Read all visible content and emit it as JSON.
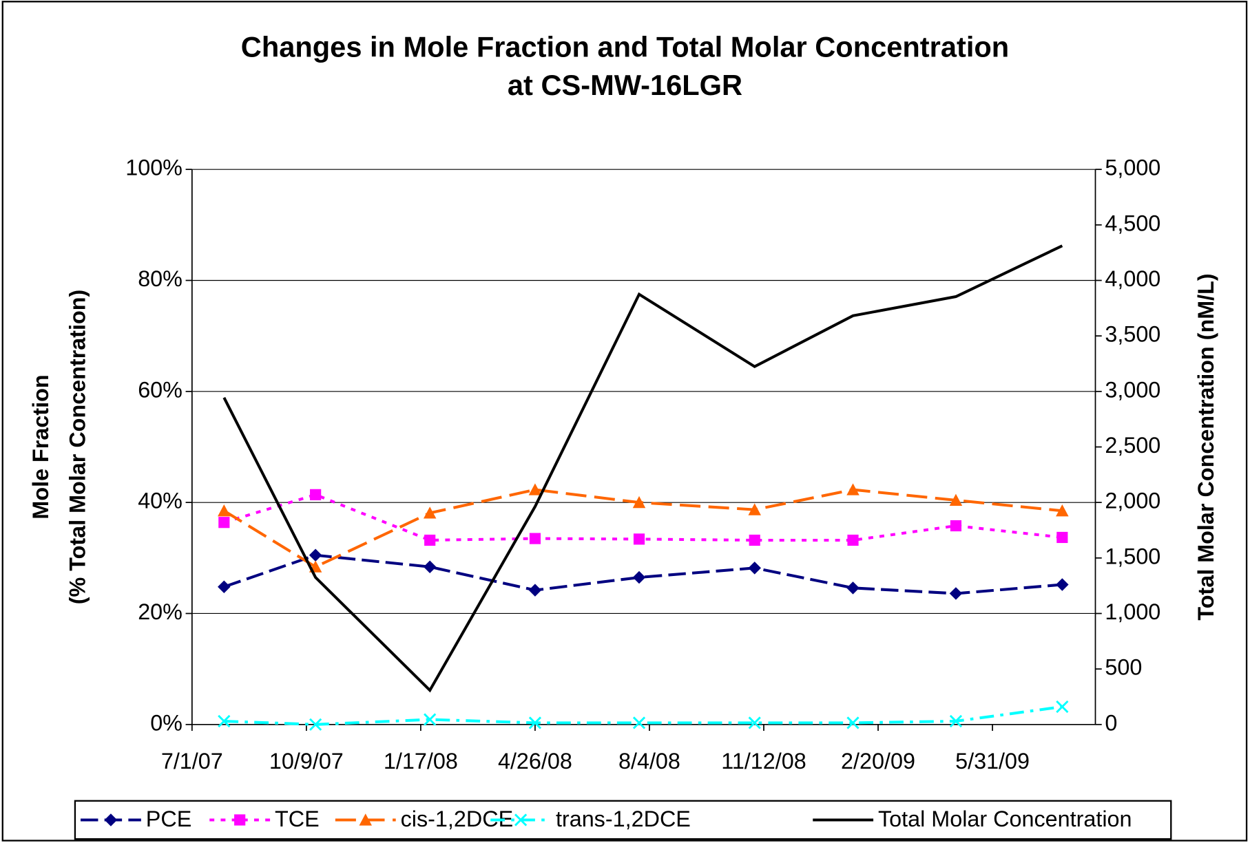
{
  "chart_data": {
    "type": "line",
    "title": [
      "Changes in Mole Fraction and Total Molar Concentration",
      "at CS-MW-16LGR"
    ],
    "ylabel": [
      "Mole Fraction",
      "(% Total Molar Concentration)"
    ],
    "y2label": "Total Molar Concentration (nM/L)",
    "x": [
      39292,
      39372,
      39472,
      39564,
      39655,
      39756,
      39842,
      39932,
      40025
    ],
    "xlim": [
      39264,
      40054
    ],
    "xticks": [
      {
        "value": 39264,
        "label": "7/1/07"
      },
      {
        "value": 39364,
        "label": "10/9/07"
      },
      {
        "value": 39464,
        "label": "1/17/08"
      },
      {
        "value": 39564,
        "label": "4/26/08"
      },
      {
        "value": 39664,
        "label": "8/4/08"
      },
      {
        "value": 39764,
        "label": "11/12/08"
      },
      {
        "value": 39864,
        "label": "2/20/09"
      },
      {
        "value": 39964,
        "label": "5/31/09"
      }
    ],
    "ylim": [
      0,
      100
    ],
    "yticks": [
      {
        "value": 0,
        "label": "0%"
      },
      {
        "value": 20,
        "label": "20%"
      },
      {
        "value": 40,
        "label": "40%"
      },
      {
        "value": 60,
        "label": "60%"
      },
      {
        "value": 80,
        "label": "80%"
      },
      {
        "value": 100,
        "label": "100%"
      }
    ],
    "y2lim": [
      0,
      5000
    ],
    "y2ticks": [
      0,
      500,
      {
        "value": 1000,
        "label": "1,000"
      },
      {
        "value": 1500,
        "label": "1,500"
      },
      {
        "value": 2000,
        "label": "2,000"
      },
      {
        "value": 2500,
        "label": "2,500"
      },
      {
        "value": 3000,
        "label": "3,000"
      },
      {
        "value": 3500,
        "label": "3,500"
      },
      {
        "value": 4000,
        "label": "4,000"
      },
      {
        "value": 4500,
        "label": "4,500"
      },
      {
        "value": 5000,
        "label": "5,000"
      }
    ],
    "grid": true,
    "legend": "bottom",
    "series": [
      {
        "name": "PCE",
        "color": "#000080",
        "marker": "diamond",
        "dash": "dashed",
        "values": [
          24.8,
          30.5,
          28.4,
          24.2,
          26.5,
          28.2,
          24.6,
          23.6,
          25.2
        ]
      },
      {
        "name": "TCE",
        "color": "#ff00ff",
        "marker": "square",
        "dash": "dotted",
        "values": [
          36.4,
          41.4,
          33.2,
          33.5,
          33.4,
          33.2,
          33.2,
          35.8,
          33.7
        ]
      },
      {
        "name": "cis-1,2DCE",
        "color": "#ff6600",
        "marker": "triangle",
        "dash": "longdash",
        "values": [
          38.5,
          28.4,
          38.1,
          42.3,
          40.0,
          38.7,
          42.3,
          40.4,
          38.5
        ]
      },
      {
        "name": "trans-1,2DCE",
        "color": "#00ffff",
        "marker": "x",
        "dash": "dashdot",
        "values": [
          0.6,
          0,
          0.9,
          0.3,
          0.3,
          0.3,
          0.3,
          0.6,
          3.2
        ]
      },
      {
        "name": "Total Molar Concentration",
        "color": "#000000",
        "marker": "none",
        "dash": "solid",
        "axis": "y2",
        "values": [
          2944,
          1325,
          308,
          1963,
          3875,
          3224,
          3682,
          3854,
          4312
        ]
      }
    ]
  }
}
